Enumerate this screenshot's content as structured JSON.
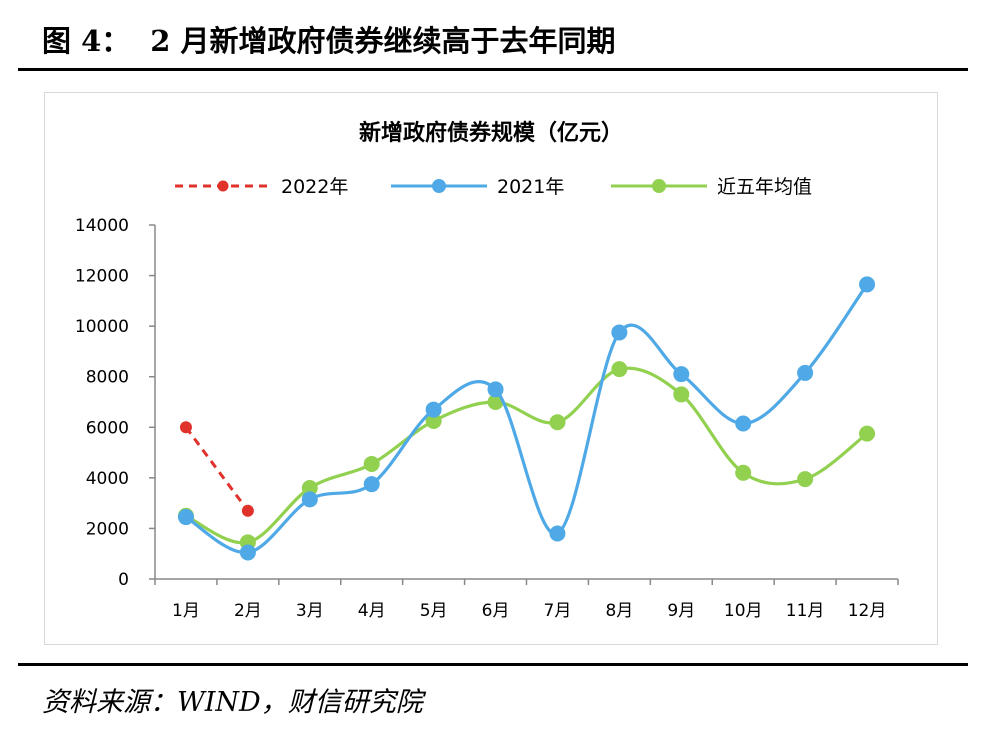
{
  "figure": {
    "label": "图 4：",
    "title": "2 月新增政府债券继续高于去年同期",
    "source": "资料来源：WIND，财信研究院"
  },
  "chart_data": {
    "type": "line",
    "title": "新增政府债券规模（亿元）",
    "xlabel": "",
    "ylabel": "",
    "categories": [
      "1月",
      "2月",
      "3月",
      "4月",
      "5月",
      "6月",
      "7月",
      "8月",
      "9月",
      "10月",
      "11月",
      "12月"
    ],
    "ylim": [
      0,
      14000
    ],
    "yticks": [
      0,
      2000,
      4000,
      6000,
      8000,
      10000,
      12000,
      14000
    ],
    "grid": false,
    "legend_position": "top",
    "series": [
      {
        "name": "2022年",
        "color": "#e0312b",
        "style": "dashed",
        "smooth": false,
        "values": [
          6000,
          2700,
          null,
          null,
          null,
          null,
          null,
          null,
          null,
          null,
          null,
          null
        ]
      },
      {
        "name": "2021年",
        "color": "#4fa9e6",
        "style": "solid",
        "smooth": true,
        "values": [
          2450,
          1050,
          3150,
          3750,
          6700,
          7500,
          1800,
          9750,
          8100,
          6150,
          8150,
          11650
        ]
      },
      {
        "name": "近五年均值",
        "color": "#92d050",
        "style": "solid",
        "smooth": true,
        "values": [
          2500,
          1450,
          3600,
          4550,
          6250,
          7000,
          6200,
          8300,
          7300,
          4200,
          3950,
          5750
        ]
      }
    ]
  }
}
